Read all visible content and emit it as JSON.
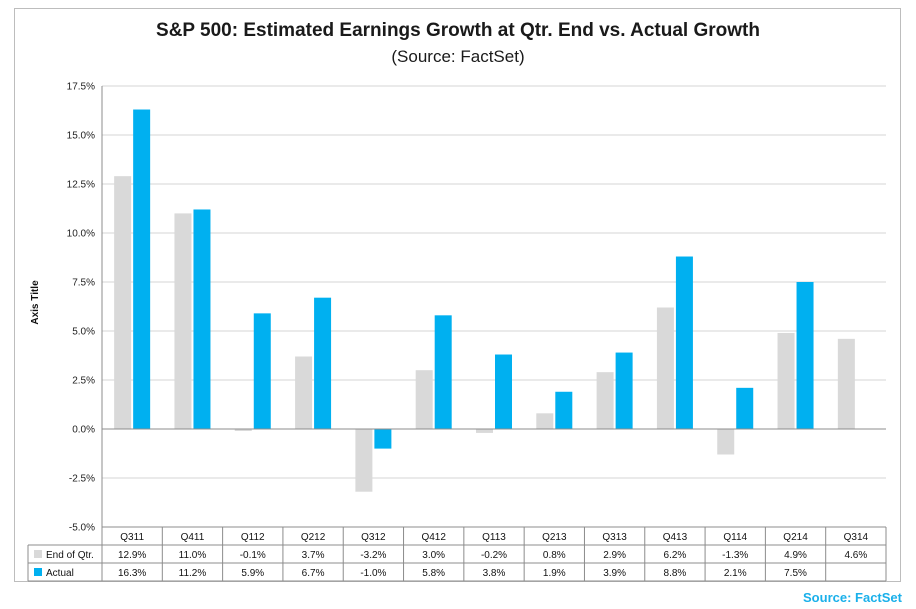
{
  "chart_data": {
    "type": "bar",
    "title": "S&P 500: Estimated Earnings Growth at Qtr. End vs. Actual Growth",
    "subtitle": "(Source: FactSet)",
    "ylabel": "Axis Title",
    "ylim": [
      -5.0,
      17.5
    ],
    "ytick_step": 2.5,
    "ytick_labels": [
      "17.5%",
      "15.0%",
      "12.5%",
      "10.0%",
      "7.5%",
      "5.0%",
      "2.5%",
      "0.0%",
      "-2.5%",
      "-5.0%"
    ],
    "categories": [
      "Q311",
      "Q411",
      "Q112",
      "Q212",
      "Q312",
      "Q412",
      "Q113",
      "Q213",
      "Q313",
      "Q413",
      "Q114",
      "Q214",
      "Q314"
    ],
    "series": [
      {
        "name": "End of Qtr.",
        "color": "#d9d9d9",
        "values": [
          12.9,
          11.0,
          -0.1,
          3.7,
          -3.2,
          3.0,
          -0.2,
          0.8,
          2.9,
          6.2,
          -1.3,
          4.9,
          4.6
        ],
        "labels": [
          "12.9%",
          "11.0%",
          "-0.1%",
          "3.7%",
          "-3.2%",
          "3.0%",
          "-0.2%",
          "0.8%",
          "2.9%",
          "6.2%",
          "-1.3%",
          "4.9%",
          "4.6%"
        ]
      },
      {
        "name": "Actual",
        "color": "#00b0f0",
        "values": [
          16.3,
          11.2,
          5.9,
          6.7,
          -1.0,
          5.8,
          3.8,
          1.9,
          3.9,
          8.8,
          2.1,
          7.5,
          null
        ],
        "labels": [
          "16.3%",
          "11.2%",
          "5.9%",
          "6.7%",
          "-1.0%",
          "5.8%",
          "3.8%",
          "1.9%",
          "3.9%",
          "8.8%",
          "2.1%",
          "7.5%",
          ""
        ]
      }
    ],
    "legend": "data-table"
  },
  "footer": {
    "source": "Source: FactSet"
  }
}
